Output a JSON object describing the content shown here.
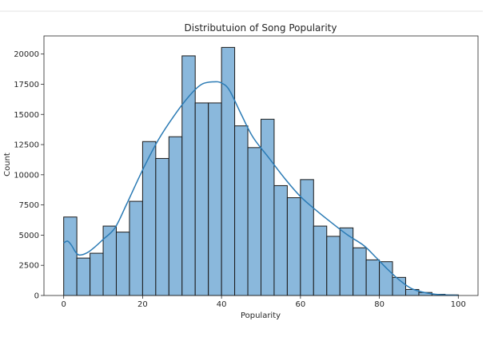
{
  "chart_data": {
    "type": "bar",
    "title": "Distributuion of Song Popularity",
    "xlabel": "Popularity",
    "ylabel": "Count",
    "xlim": [
      -5,
      105
    ],
    "ylim": [
      0,
      21500
    ],
    "x_ticks": [
      "0",
      "20",
      "40",
      "60",
      "80",
      "100"
    ],
    "y_ticks": [
      "0",
      "2500",
      "5000",
      "7500",
      "10000",
      "12500",
      "15000",
      "17500",
      "20000"
    ],
    "bin_width": 3.33,
    "bins_start": [
      0,
      3.33,
      6.67,
      10,
      13.33,
      16.67,
      20,
      23.33,
      26.67,
      30,
      33.33,
      36.67,
      40,
      43.33,
      46.67,
      50,
      53.33,
      56.67,
      60,
      63.33,
      66.67,
      70,
      73.33,
      76.67,
      80,
      83.33,
      86.67,
      90,
      93.33,
      96.67
    ],
    "values": [
      6500,
      3100,
      3500,
      5750,
      5250,
      7800,
      12750,
      11350,
      13150,
      19850,
      15950,
      15950,
      20550,
      14050,
      12250,
      14600,
      9100,
      8100,
      9600,
      5750,
      4900,
      5600,
      3950,
      2950,
      2800,
      1500,
      500,
      250,
      100,
      50
    ],
    "kde": {
      "x": [
        0,
        1,
        2,
        3,
        4,
        6,
        8,
        10,
        13,
        16,
        20,
        24,
        28,
        32,
        35,
        38,
        40,
        42,
        45,
        48,
        52,
        56,
        60,
        64,
        68,
        72,
        76,
        79,
        82,
        85,
        88,
        91,
        94,
        97,
        100
      ],
      "y": [
        4350,
        4500,
        4150,
        3600,
        3350,
        3550,
        4050,
        4650,
        5600,
        7600,
        10400,
        12900,
        14900,
        16600,
        17500,
        17700,
        17600,
        17000,
        15000,
        13100,
        11400,
        9700,
        8200,
        7050,
        6000,
        5000,
        4150,
        3200,
        2200,
        1300,
        600,
        280,
        110,
        40,
        10
      ]
    },
    "grid": false,
    "legend": "none",
    "colors": {
      "bar_fill": "#8ab8dc",
      "bar_edge": "#1a1a1a",
      "kde_line": "#2b7bb5"
    }
  }
}
